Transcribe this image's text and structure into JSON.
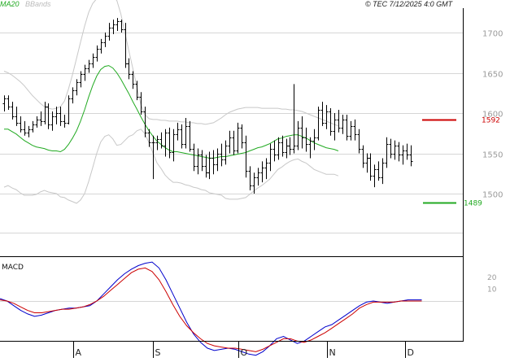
{
  "header": {
    "ma_label": "MA20",
    "bands_label": "BBands",
    "copyright": "© TEC 7/12/2025 4:0 GMT"
  },
  "colors": {
    "bar": "#000000",
    "ma": "#22aa22",
    "bands": "#c8c8c8",
    "grid": "#d6d6d6",
    "frame": "#000000",
    "macd": "#0000cc",
    "signal": "#cc0000",
    "resistance": "#cc0000",
    "support": "#22aa22"
  },
  "chart_data": [
    {
      "type": "ohlc",
      "title": "",
      "x_labels": [
        "A",
        "S",
        "O",
        "N",
        "D"
      ],
      "yticks": [
        1500,
        1550,
        1600,
        1650,
        1700
      ],
      "ylim": [
        1452,
        1738
      ],
      "grid": true,
      "series": [
        {
          "name": "MA20",
          "values": [
            1580,
            1580,
            1577,
            1574,
            1570,
            1566,
            1563,
            1560,
            1558,
            1557,
            1556,
            1554,
            1553,
            1553,
            1552,
            1555,
            1561,
            1569,
            1578,
            1590,
            1604,
            1620,
            1634,
            1646,
            1654,
            1658,
            1659,
            1656,
            1650,
            1642,
            1633,
            1624,
            1614,
            1605,
            1595,
            1586,
            1578,
            1571,
            1565,
            1561,
            1557,
            1554,
            1552,
            1552,
            1551,
            1550,
            1549,
            1548,
            1547,
            1546,
            1545,
            1544,
            1544,
            1545,
            1546,
            1546,
            1547,
            1548,
            1549,
            1550,
            1551,
            1553,
            1555,
            1557,
            1558,
            1560,
            1562,
            1565,
            1568,
            1569,
            1571,
            1572,
            1573,
            1573,
            1571,
            1569,
            1566,
            1563,
            1561,
            1559,
            1557,
            1556,
            1555,
            1553
          ]
        },
        {
          "name": "Upper band",
          "values": [
            1652,
            1650,
            1647,
            1643,
            1639,
            1634,
            1628,
            1622,
            1617,
            1612,
            1608,
            1606,
            1605,
            1606,
            1608,
            1615,
            1630,
            1648,
            1668,
            1688,
            1708,
            1725,
            1736,
            1742,
            1744,
            1745,
            1745,
            1744,
            1740,
            1723,
            1700,
            1677,
            1655,
            1632,
            1610,
            1598,
            1593,
            1592,
            1592,
            1591,
            1591,
            1590,
            1590,
            1590,
            1589,
            1589,
            1588,
            1588,
            1587,
            1587,
            1586,
            1587,
            1588,
            1591,
            1594,
            1598,
            1601,
            1603,
            1605,
            1606,
            1607,
            1607,
            1607,
            1607,
            1606,
            1606,
            1606,
            1606,
            1606,
            1605,
            1605,
            1604,
            1604,
            1603,
            1602,
            1600,
            1598,
            1596,
            1594,
            1592,
            1590,
            1588,
            1586,
            1584
          ]
        },
        {
          "name": "Lower band",
          "values": [
            1508,
            1510,
            1507,
            1505,
            1501,
            1498,
            1498,
            1498,
            1499,
            1502,
            1504,
            1502,
            1501,
            1500,
            1496,
            1495,
            1492,
            1490,
            1488,
            1492,
            1500,
            1515,
            1532,
            1550,
            1564,
            1571,
            1573,
            1568,
            1560,
            1561,
            1566,
            1571,
            1573,
            1578,
            1580,
            1574,
            1563,
            1550,
            1538,
            1531,
            1523,
            1518,
            1514,
            1514,
            1513,
            1511,
            1510,
            1508,
            1507,
            1505,
            1504,
            1501,
            1500,
            1499,
            1498,
            1494,
            1493,
            1493,
            1493,
            1494,
            1495,
            1499,
            1503,
            1507,
            1510,
            1514,
            1518,
            1524,
            1530,
            1533,
            1537,
            1540,
            1542,
            1543,
            1540,
            1538,
            1534,
            1530,
            1528,
            1526,
            1524,
            1524,
            1524,
            1522
          ]
        }
      ],
      "bars": [
        {
          "o": 1612,
          "h": 1622,
          "l": 1602,
          "c": 1618
        },
        {
          "o": 1618,
          "h": 1622,
          "l": 1604,
          "c": 1608
        },
        {
          "o": 1608,
          "h": 1614,
          "l": 1592,
          "c": 1596
        },
        {
          "o": 1596,
          "h": 1608,
          "l": 1584,
          "c": 1588
        },
        {
          "o": 1588,
          "h": 1596,
          "l": 1576,
          "c": 1580
        },
        {
          "o": 1580,
          "h": 1590,
          "l": 1572,
          "c": 1576
        },
        {
          "o": 1576,
          "h": 1584,
          "l": 1570,
          "c": 1580
        },
        {
          "o": 1580,
          "h": 1590,
          "l": 1576,
          "c": 1586
        },
        {
          "o": 1586,
          "h": 1596,
          "l": 1582,
          "c": 1592
        },
        {
          "o": 1592,
          "h": 1602,
          "l": 1584,
          "c": 1590
        },
        {
          "o": 1590,
          "h": 1614,
          "l": 1586,
          "c": 1608
        },
        {
          "o": 1608,
          "h": 1612,
          "l": 1580,
          "c": 1586
        },
        {
          "o": 1586,
          "h": 1602,
          "l": 1578,
          "c": 1596
        },
        {
          "o": 1596,
          "h": 1608,
          "l": 1586,
          "c": 1600
        },
        {
          "o": 1600,
          "h": 1608,
          "l": 1584,
          "c": 1590
        },
        {
          "o": 1590,
          "h": 1598,
          "l": 1582,
          "c": 1588
        },
        {
          "o": 1588,
          "h": 1622,
          "l": 1586,
          "c": 1618
        },
        {
          "o": 1618,
          "h": 1632,
          "l": 1612,
          "c": 1628
        },
        {
          "o": 1628,
          "h": 1642,
          "l": 1622,
          "c": 1638
        },
        {
          "o": 1638,
          "h": 1652,
          "l": 1632,
          "c": 1648
        },
        {
          "o": 1648,
          "h": 1660,
          "l": 1640,
          "c": 1656
        },
        {
          "o": 1656,
          "h": 1666,
          "l": 1650,
          "c": 1662
        },
        {
          "o": 1662,
          "h": 1674,
          "l": 1656,
          "c": 1670
        },
        {
          "o": 1670,
          "h": 1684,
          "l": 1664,
          "c": 1680
        },
        {
          "o": 1680,
          "h": 1692,
          "l": 1674,
          "c": 1688
        },
        {
          "o": 1688,
          "h": 1700,
          "l": 1682,
          "c": 1696
        },
        {
          "o": 1696,
          "h": 1712,
          "l": 1690,
          "c": 1706
        },
        {
          "o": 1706,
          "h": 1716,
          "l": 1698,
          "c": 1710
        },
        {
          "o": 1710,
          "h": 1718,
          "l": 1702,
          "c": 1714
        },
        {
          "o": 1714,
          "h": 1716,
          "l": 1700,
          "c": 1704
        },
        {
          "o": 1704,
          "h": 1712,
          "l": 1656,
          "c": 1662
        },
        {
          "o": 1662,
          "h": 1668,
          "l": 1642,
          "c": 1648
        },
        {
          "o": 1648,
          "h": 1652,
          "l": 1630,
          "c": 1636
        },
        {
          "o": 1636,
          "h": 1640,
          "l": 1616,
          "c": 1620
        },
        {
          "o": 1620,
          "h": 1626,
          "l": 1598,
          "c": 1602
        },
        {
          "o": 1602,
          "h": 1608,
          "l": 1570,
          "c": 1576
        },
        {
          "o": 1576,
          "h": 1580,
          "l": 1558,
          "c": 1564
        },
        {
          "o": 1564,
          "h": 1572,
          "l": 1518,
          "c": 1564
        },
        {
          "o": 1564,
          "h": 1572,
          "l": 1554,
          "c": 1568
        },
        {
          "o": 1568,
          "h": 1576,
          "l": 1556,
          "c": 1560
        },
        {
          "o": 1560,
          "h": 1580,
          "l": 1546,
          "c": 1576
        },
        {
          "o": 1576,
          "h": 1582,
          "l": 1544,
          "c": 1552
        },
        {
          "o": 1552,
          "h": 1580,
          "l": 1540,
          "c": 1574
        },
        {
          "o": 1574,
          "h": 1588,
          "l": 1566,
          "c": 1580
        },
        {
          "o": 1580,
          "h": 1586,
          "l": 1556,
          "c": 1562
        },
        {
          "o": 1562,
          "h": 1594,
          "l": 1556,
          "c": 1584
        },
        {
          "o": 1584,
          "h": 1590,
          "l": 1552,
          "c": 1556
        },
        {
          "o": 1556,
          "h": 1562,
          "l": 1528,
          "c": 1534
        },
        {
          "o": 1534,
          "h": 1556,
          "l": 1524,
          "c": 1548
        },
        {
          "o": 1548,
          "h": 1554,
          "l": 1528,
          "c": 1534
        },
        {
          "o": 1534,
          "h": 1548,
          "l": 1520,
          "c": 1526
        },
        {
          "o": 1526,
          "h": 1552,
          "l": 1518,
          "c": 1544
        },
        {
          "o": 1544,
          "h": 1554,
          "l": 1524,
          "c": 1536
        },
        {
          "o": 1536,
          "h": 1556,
          "l": 1528,
          "c": 1550
        },
        {
          "o": 1550,
          "h": 1562,
          "l": 1534,
          "c": 1542
        },
        {
          "o": 1542,
          "h": 1566,
          "l": 1536,
          "c": 1560
        },
        {
          "o": 1560,
          "h": 1578,
          "l": 1550,
          "c": 1570
        },
        {
          "o": 1570,
          "h": 1578,
          "l": 1548,
          "c": 1554
        },
        {
          "o": 1554,
          "h": 1588,
          "l": 1550,
          "c": 1582
        },
        {
          "o": 1582,
          "h": 1586,
          "l": 1556,
          "c": 1564
        },
        {
          "o": 1564,
          "h": 1572,
          "l": 1520,
          "c": 1528
        },
        {
          "o": 1528,
          "h": 1534,
          "l": 1504,
          "c": 1510
        },
        {
          "o": 1510,
          "h": 1526,
          "l": 1500,
          "c": 1520
        },
        {
          "o": 1520,
          "h": 1532,
          "l": 1510,
          "c": 1526
        },
        {
          "o": 1526,
          "h": 1540,
          "l": 1514,
          "c": 1532
        },
        {
          "o": 1532,
          "h": 1544,
          "l": 1518,
          "c": 1538
        },
        {
          "o": 1538,
          "h": 1562,
          "l": 1528,
          "c": 1556
        },
        {
          "o": 1556,
          "h": 1566,
          "l": 1540,
          "c": 1548
        },
        {
          "o": 1548,
          "h": 1570,
          "l": 1542,
          "c": 1564
        },
        {
          "o": 1564,
          "h": 1572,
          "l": 1546,
          "c": 1552
        },
        {
          "o": 1552,
          "h": 1568,
          "l": 1544,
          "c": 1560
        },
        {
          "o": 1560,
          "h": 1570,
          "l": 1548,
          "c": 1556
        },
        {
          "o": 1556,
          "h": 1636,
          "l": 1550,
          "c": 1560
        },
        {
          "o": 1560,
          "h": 1590,
          "l": 1554,
          "c": 1582
        },
        {
          "o": 1582,
          "h": 1596,
          "l": 1556,
          "c": 1570
        },
        {
          "o": 1570,
          "h": 1582,
          "l": 1552,
          "c": 1562
        },
        {
          "o": 1562,
          "h": 1570,
          "l": 1544,
          "c": 1566
        },
        {
          "o": 1566,
          "h": 1580,
          "l": 1554,
          "c": 1570
        },
        {
          "o": 1570,
          "h": 1608,
          "l": 1566,
          "c": 1604
        },
        {
          "o": 1604,
          "h": 1614,
          "l": 1584,
          "c": 1588
        },
        {
          "o": 1588,
          "h": 1610,
          "l": 1580,
          "c": 1602
        },
        {
          "o": 1602,
          "h": 1606,
          "l": 1572,
          "c": 1578
        },
        {
          "o": 1578,
          "h": 1600,
          "l": 1566,
          "c": 1592
        },
        {
          "o": 1592,
          "h": 1604,
          "l": 1576,
          "c": 1582
        },
        {
          "o": 1582,
          "h": 1598,
          "l": 1574,
          "c": 1592
        },
        {
          "o": 1592,
          "h": 1598,
          "l": 1566,
          "c": 1572
        },
        {
          "o": 1572,
          "h": 1590,
          "l": 1566,
          "c": 1584
        },
        {
          "o": 1584,
          "h": 1592,
          "l": 1566,
          "c": 1574
        },
        {
          "o": 1574,
          "h": 1580,
          "l": 1550,
          "c": 1556
        },
        {
          "o": 1556,
          "h": 1560,
          "l": 1532,
          "c": 1538
        },
        {
          "o": 1538,
          "h": 1550,
          "l": 1526,
          "c": 1544
        },
        {
          "o": 1544,
          "h": 1550,
          "l": 1516,
          "c": 1522
        },
        {
          "o": 1522,
          "h": 1536,
          "l": 1508,
          "c": 1530
        },
        {
          "o": 1530,
          "h": 1540,
          "l": 1516,
          "c": 1520
        },
        {
          "o": 1520,
          "h": 1544,
          "l": 1512,
          "c": 1538
        },
        {
          "o": 1538,
          "h": 1570,
          "l": 1532,
          "c": 1562
        },
        {
          "o": 1562,
          "h": 1568,
          "l": 1544,
          "c": 1550
        },
        {
          "o": 1550,
          "h": 1566,
          "l": 1542,
          "c": 1560
        },
        {
          "o": 1560,
          "h": 1564,
          "l": 1540,
          "c": 1548
        },
        {
          "o": 1548,
          "h": 1560,
          "l": 1536,
          "c": 1554
        },
        {
          "o": 1554,
          "h": 1562,
          "l": 1542,
          "c": 1548
        },
        {
          "o": 1548,
          "h": 1560,
          "l": 1534,
          "c": 1540
        }
      ],
      "levels": [
        {
          "name": "resistance",
          "label": "1592",
          "value": 1592
        },
        {
          "name": "support",
          "label": "1489",
          "value": 1489
        }
      ]
    },
    {
      "type": "line",
      "title": "MACD",
      "yticks": [
        10,
        20
      ],
      "ylim": [
        -48,
        38
      ],
      "series": [
        {
          "name": "MACD",
          "values": [
            2,
            0,
            -4,
            -8,
            -11,
            -13,
            -12,
            -10,
            -8,
            -7,
            -6,
            -6,
            -5,
            -4,
            0,
            6,
            12,
            18,
            23,
            27,
            30,
            32,
            33,
            28,
            18,
            6,
            -6,
            -18,
            -28,
            -35,
            -40,
            -42,
            -41,
            -40,
            -41,
            -43,
            -45,
            -46,
            -43,
            -38,
            -32,
            -30,
            -33,
            -36,
            -34,
            -30,
            -26,
            -22,
            -20,
            -16,
            -12,
            -8,
            -4,
            -1,
            0,
            -1,
            -2,
            -1,
            0,
            1,
            1,
            1
          ]
        },
        {
          "name": "Signal",
          "values": [
            1,
            0,
            -2,
            -5,
            -8,
            -10,
            -10,
            -9,
            -8,
            -7,
            -7,
            -6,
            -5,
            -3,
            0,
            4,
            9,
            14,
            19,
            24,
            27,
            28,
            25,
            18,
            8,
            -3,
            -13,
            -21,
            -27,
            -32,
            -36,
            -38,
            -39,
            -40,
            -40,
            -41,
            -42,
            -43,
            -41,
            -38,
            -35,
            -32,
            -32,
            -34,
            -35,
            -33,
            -30,
            -27,
            -23,
            -19,
            -15,
            -11,
            -6,
            -3,
            -1,
            -1,
            -1,
            -1,
            0,
            0,
            0,
            0
          ]
        }
      ]
    }
  ]
}
